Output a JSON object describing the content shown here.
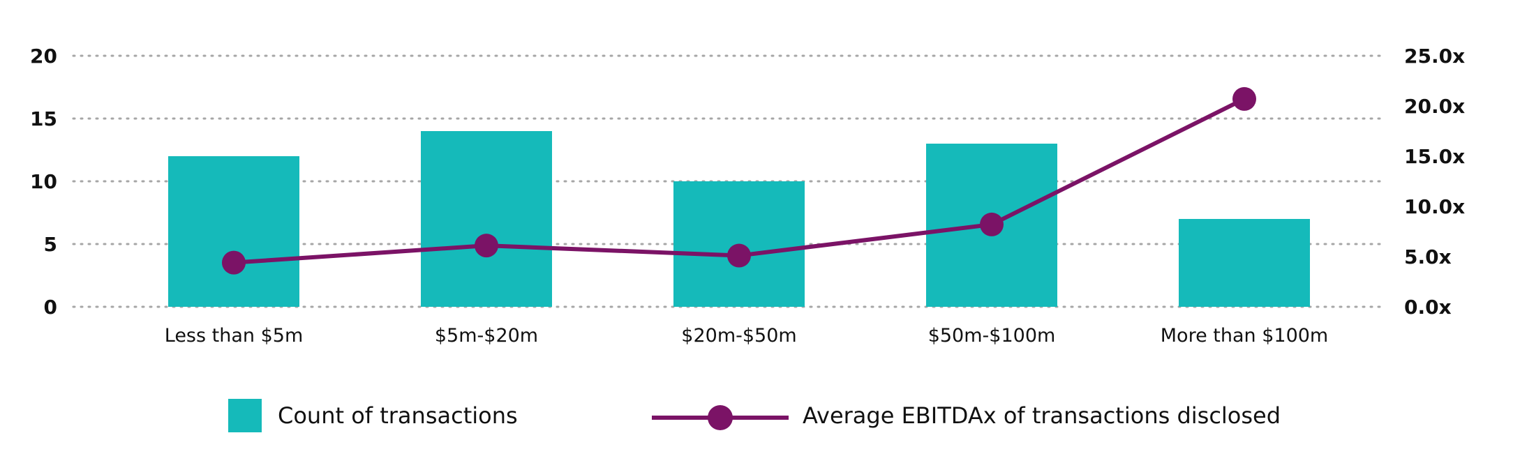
{
  "chart_data": {
    "type": "bar",
    "categories": [
      "Less than $5m",
      "$5m-$20m",
      "$20m-$50m",
      "$50m-$100m",
      "More than $100m"
    ],
    "series": [
      {
        "name": "Count of transactions",
        "type": "bar",
        "axis": "left",
        "color": "#15BABA",
        "values": [
          12,
          14,
          10,
          13,
          7
        ]
      },
      {
        "name": "Average EBITDAx of transactions disclosed",
        "type": "line",
        "axis": "right",
        "color": "#7B1366",
        "values": [
          4.4,
          6.1,
          5.1,
          8.2,
          20.7
        ]
      }
    ],
    "y_left": {
      "ylim": [
        0,
        20
      ],
      "ticks": [
        "0",
        "5",
        "10",
        "15",
        "20"
      ]
    },
    "y_right": {
      "ylim": [
        0,
        25
      ],
      "ticks": [
        "0.0x",
        "5.0x",
        "10.0x",
        "15.0x",
        "20.0x",
        "25.0x"
      ]
    },
    "grid": true,
    "legend": "bottom"
  }
}
